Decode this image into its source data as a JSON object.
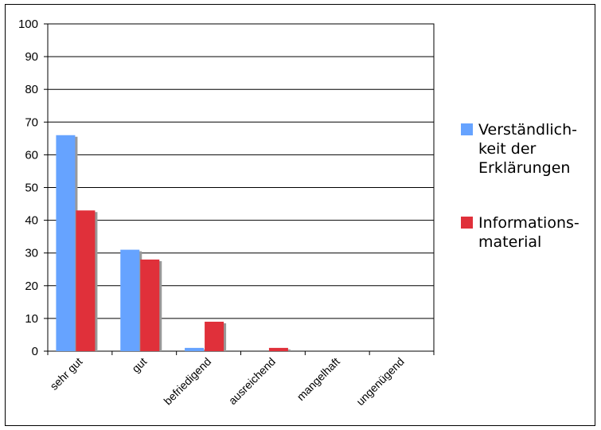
{
  "chart_data": {
    "type": "bar",
    "categories": [
      "sehr gut",
      "gut",
      "befriedigend",
      "ausreichend",
      "mangelhaft",
      "ungenügend"
    ],
    "series": [
      {
        "name_lines": [
          "Verständlich-",
          "keit der",
          "Erklärungen"
        ],
        "color": "#66a3ff",
        "values": [
          66,
          31,
          1,
          0,
          0,
          0
        ]
      },
      {
        "name_lines": [
          "Informations-",
          "material"
        ],
        "color": "#e0303a",
        "values": [
          43,
          28,
          9,
          1,
          0,
          0
        ]
      }
    ],
    "ylim": [
      0,
      100
    ],
    "yticks": [
      "0",
      "10",
      "20",
      "30",
      "40",
      "50",
      "60",
      "70",
      "80",
      "90",
      "100"
    ],
    "grid": true,
    "legend": "right"
  }
}
